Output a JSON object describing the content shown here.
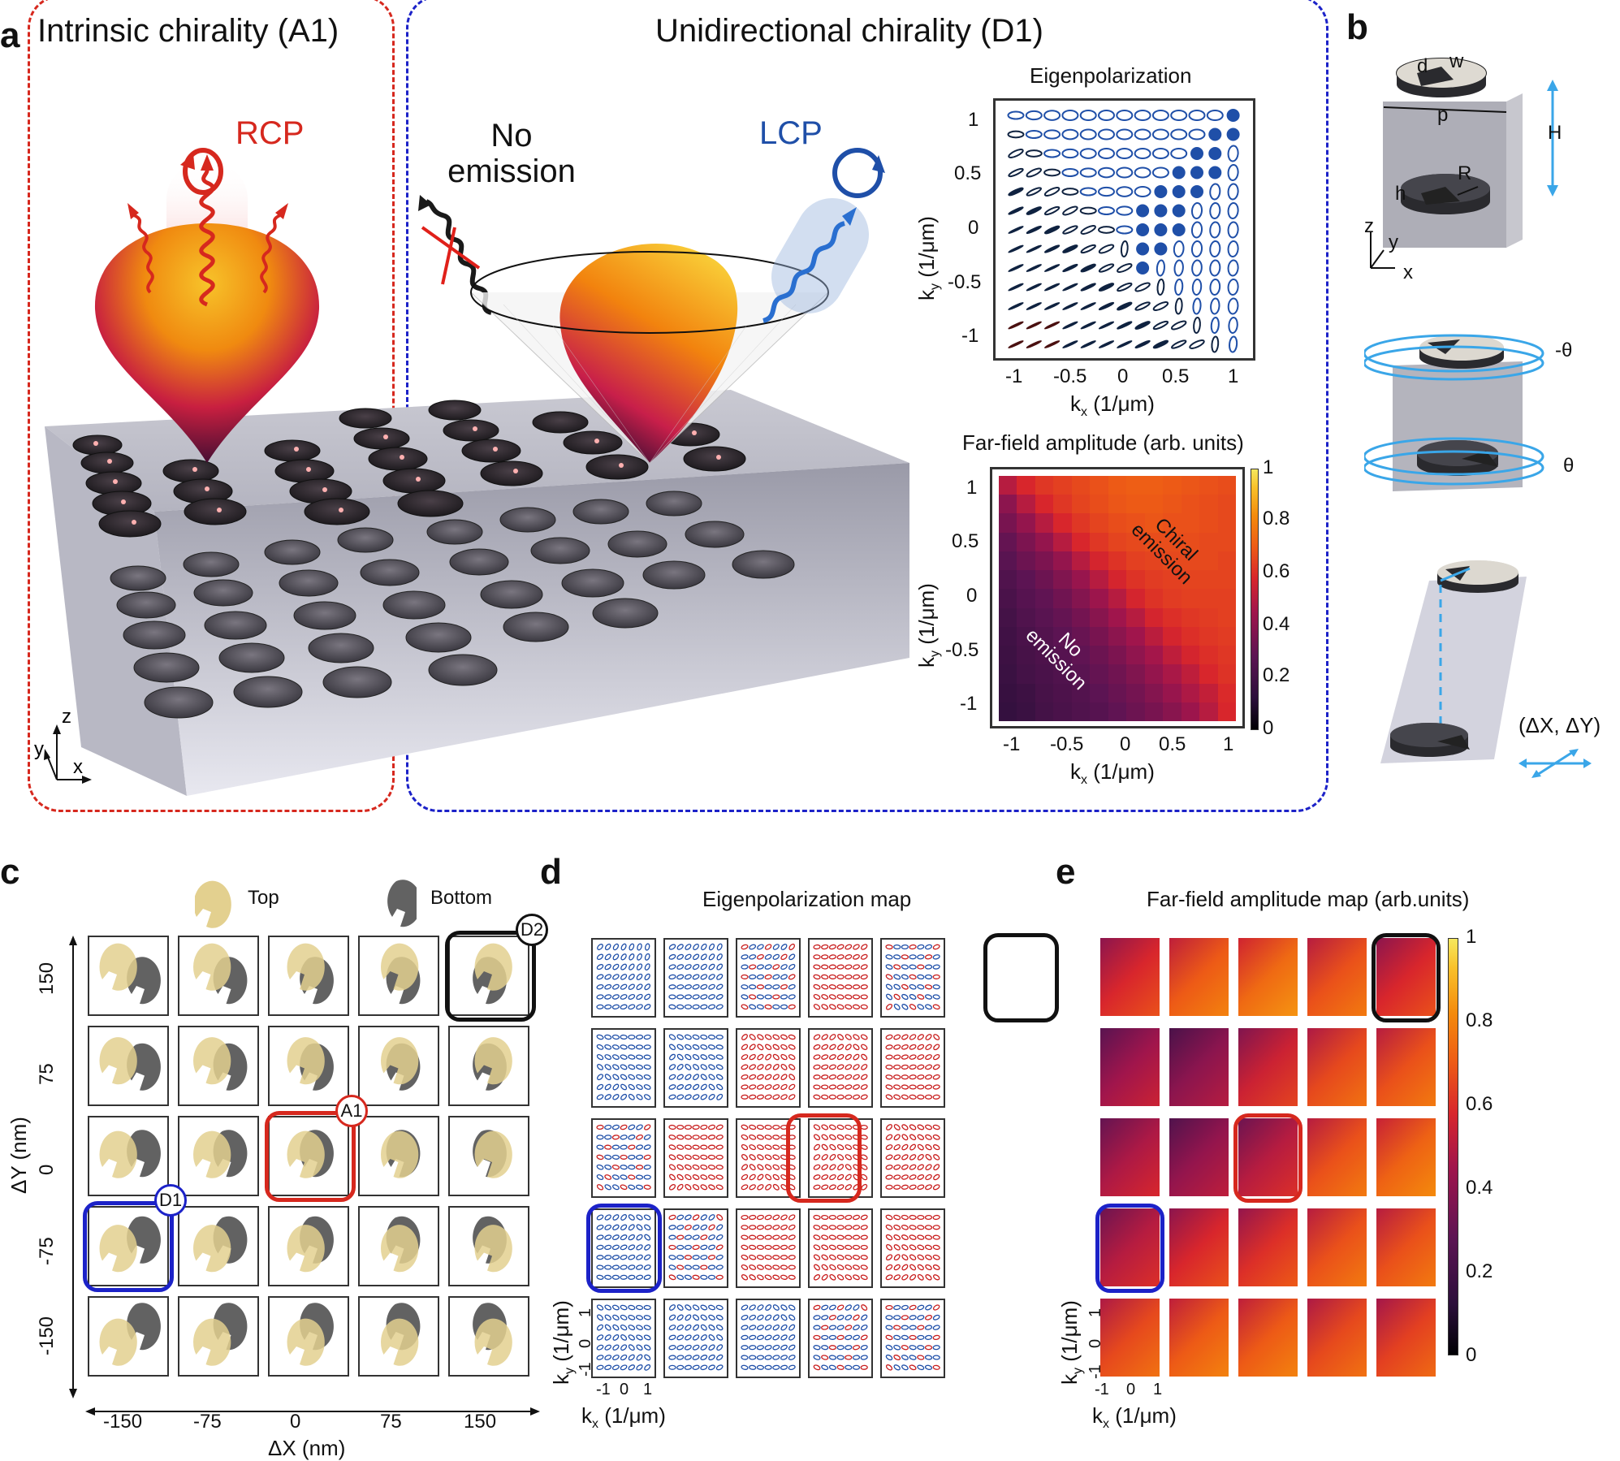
{
  "figure": {
    "panel_labels": [
      "a",
      "b",
      "c",
      "d",
      "e"
    ]
  },
  "panel_a": {
    "left_title": "Intrinsic chirality (A1)",
    "right_title": "Unidirectional chirality (D1)",
    "rcp_label": "RCP",
    "lcp_label": "LCP",
    "no_emission_label_line1": "No",
    "no_emission_label_line2": "emission",
    "axes": {
      "z": "z",
      "y": "y",
      "x": "x"
    },
    "colors": {
      "intrinsic_box": "#d6281e",
      "unidirectional_box": "#1c22c8",
      "rcp": "#d6281e",
      "lcp": "#1f4fa8"
    }
  },
  "chart_data": [
    {
      "id": "eigenpolarization",
      "type": "scatter",
      "title": "Eigenpolarization",
      "xlabel": "kx (1/μm)",
      "ylabel": "ky (1/μm)",
      "xlim": [
        -1.2,
        1.2
      ],
      "ylim": [
        -1.2,
        1.2
      ],
      "xticks": [
        "-1",
        "-0.5",
        "0",
        "0.5",
        "1"
      ],
      "yticks": [
        "1",
        "0.5",
        "0",
        "-0.5",
        "-1"
      ],
      "grid_size": 13,
      "description": "13x13 grid of polarization ellipses; filled blue circles (circular LCP) along anti-diagonal band in upper-right; lines (linear) on left/bottom; open ellipses elsewhere",
      "filled_points_kx_ky": [
        [
          1.05,
          1.05
        ],
        [
          0.88,
          0.88
        ],
        [
          1.05,
          0.88
        ],
        [
          0.7,
          0.7
        ],
        [
          0.88,
          0.7
        ],
        [
          0.53,
          0.53
        ],
        [
          0.7,
          0.53
        ],
        [
          0.88,
          0.53
        ],
        [
          0.35,
          0.35
        ],
        [
          0.53,
          0.35
        ],
        [
          0.7,
          0.35
        ],
        [
          0.18,
          0.18
        ],
        [
          0.35,
          0.18
        ],
        [
          0.53,
          0.18
        ],
        [
          0.18,
          0
        ],
        [
          0.35,
          0
        ],
        [
          0.53,
          0
        ],
        [
          0.18,
          -0.18
        ],
        [
          0.35,
          -0.18
        ],
        [
          0.18,
          -0.35
        ]
      ]
    },
    {
      "id": "far_field_amplitude",
      "type": "heatmap",
      "title": "Far-field amplitude (arb. units)",
      "xlabel": "kx (1/μm)",
      "ylabel": "ky (1/μm)",
      "xticks": [
        "-1",
        "-0.5",
        "0",
        "0.5",
        "1"
      ],
      "yticks": [
        "1",
        "0.5",
        "0",
        "-0.5",
        "-1"
      ],
      "colorbar": {
        "min": 0,
        "max": 1,
        "ticks": [
          "1",
          "0.8",
          "0.6",
          "0.4",
          "0.2",
          "0"
        ]
      },
      "annotations": [
        "Chiral emission",
        "No emission"
      ],
      "grid_size": 13,
      "values_rows_top_to_bottom": [
        [
          0.5,
          0.58,
          0.62,
          0.64,
          0.66,
          0.68,
          0.7,
          0.71,
          0.71,
          0.7,
          0.69,
          0.68,
          0.67
        ],
        [
          0.4,
          0.5,
          0.58,
          0.62,
          0.65,
          0.67,
          0.69,
          0.7,
          0.7,
          0.69,
          0.68,
          0.67,
          0.66
        ],
        [
          0.35,
          0.42,
          0.5,
          0.58,
          0.62,
          0.65,
          0.67,
          0.68,
          0.69,
          0.68,
          0.68,
          0.67,
          0.66
        ],
        [
          0.3,
          0.36,
          0.42,
          0.5,
          0.58,
          0.62,
          0.65,
          0.66,
          0.67,
          0.67,
          0.67,
          0.66,
          0.66
        ],
        [
          0.27,
          0.32,
          0.36,
          0.42,
          0.5,
          0.57,
          0.61,
          0.64,
          0.65,
          0.66,
          0.66,
          0.66,
          0.65
        ],
        [
          0.24,
          0.28,
          0.32,
          0.37,
          0.43,
          0.5,
          0.57,
          0.61,
          0.63,
          0.64,
          0.65,
          0.65,
          0.65
        ],
        [
          0.22,
          0.26,
          0.29,
          0.33,
          0.38,
          0.44,
          0.5,
          0.57,
          0.61,
          0.63,
          0.64,
          0.64,
          0.64
        ],
        [
          0.2,
          0.24,
          0.27,
          0.3,
          0.34,
          0.39,
          0.45,
          0.5,
          0.57,
          0.6,
          0.62,
          0.63,
          0.64
        ],
        [
          0.19,
          0.22,
          0.25,
          0.28,
          0.31,
          0.35,
          0.4,
          0.45,
          0.51,
          0.57,
          0.6,
          0.62,
          0.63
        ],
        [
          0.18,
          0.21,
          0.23,
          0.26,
          0.29,
          0.32,
          0.36,
          0.41,
          0.46,
          0.52,
          0.57,
          0.6,
          0.62
        ],
        [
          0.17,
          0.2,
          0.22,
          0.24,
          0.27,
          0.3,
          0.33,
          0.37,
          0.42,
          0.47,
          0.52,
          0.58,
          0.61
        ],
        [
          0.16,
          0.18,
          0.21,
          0.23,
          0.25,
          0.28,
          0.31,
          0.34,
          0.38,
          0.43,
          0.48,
          0.53,
          0.59
        ],
        [
          0.15,
          0.17,
          0.2,
          0.22,
          0.24,
          0.26,
          0.29,
          0.32,
          0.35,
          0.39,
          0.44,
          0.5,
          0.58
        ]
      ]
    },
    {
      "id": "eigenpolarization_map",
      "type": "scatter",
      "title": "Eigenpolarization map",
      "xlabel": "kx (1/μm)",
      "ylabel": "ky (1/μm)",
      "xticks": [
        "-1",
        "0",
        "1"
      ],
      "yticks": [
        "1",
        "0",
        "-1"
      ],
      "grid": "5x5 subplots indexed by ΔX (cols: -150,-75,0,75,150 nm) and ΔY (rows: 150,75,0,-75,-150 nm)",
      "dominant_color_rows_top_to_bottom": [
        [
          "blue",
          "blue",
          "mixed",
          "red",
          "mixed"
        ],
        [
          "blue",
          "blue",
          "red",
          "red",
          "red"
        ],
        [
          "mixed",
          "red",
          "red",
          "red",
          "red"
        ],
        [
          "blue",
          "mixed",
          "red",
          "red",
          "red"
        ],
        [
          "blue",
          "blue",
          "blue",
          "mixed",
          "mixed"
        ]
      ],
      "highlights": {
        "D2": [
          0,
          4
        ],
        "A1": [
          2,
          2
        ],
        "D1": [
          3,
          0
        ]
      }
    },
    {
      "id": "far_field_amplitude_map",
      "type": "heatmap",
      "title": "Far-field amplitude map (arb.units)",
      "xlabel": "kx (1/μm)",
      "ylabel": "ky (1/μm)",
      "xticks": [
        "-1",
        "0",
        "1"
      ],
      "yticks": [
        "1",
        "0",
        "-1"
      ],
      "colorbar": {
        "min": 0,
        "max": 1,
        "ticks": [
          "1",
          "0.8",
          "0.6",
          "0.4",
          "0.2",
          "0"
        ]
      },
      "grid": "5x5 subplots indexed by ΔX (cols) and ΔY (rows)",
      "mean_amplitude_rows_top_to_bottom": [
        [
          0.58,
          0.7,
          0.74,
          0.68,
          0.58
        ],
        [
          0.45,
          0.4,
          0.55,
          0.66,
          0.68
        ],
        [
          0.48,
          0.42,
          0.5,
          0.68,
          0.72
        ],
        [
          0.5,
          0.58,
          0.6,
          0.68,
          0.68
        ],
        [
          0.66,
          0.7,
          0.7,
          0.66,
          0.64
        ]
      ],
      "highlights": {
        "D2": [
          0,
          4
        ],
        "A1": [
          2,
          2
        ],
        "D1": [
          3,
          0
        ]
      }
    }
  ],
  "eigen_plot": {
    "title": "Eigenpolarization",
    "xlabel_k": "k",
    "xlabel_sub": "x",
    "xlabel_unit": " (1/μm)",
    "ylabel_k": "k",
    "ylabel_sub": "y",
    "ylabel_unit": " (1/μm)",
    "xticks": [
      "-1",
      "-0.5",
      "0",
      "0.5",
      "1"
    ],
    "yticks": [
      "1",
      "0.5",
      "0",
      "-0.5",
      "-1"
    ]
  },
  "farfield_plot": {
    "title": "Far-field amplitude (arb. units)",
    "chiral_line1": "Chiral",
    "chiral_line2": "emission",
    "noemit_line1": "No",
    "noemit_line2": "emission",
    "cbar_ticks": [
      "1",
      "0.8",
      "0.6",
      "0.4",
      "0.2",
      "0"
    ]
  },
  "panel_b": {
    "labels": {
      "d": "d",
      "w": "w",
      "p": "p",
      "H": "H",
      "R": "R",
      "h": "h",
      "z": "z",
      "y": "y",
      "x": "x"
    },
    "theta_neg": "-θ",
    "theta_pos": "θ",
    "shift": "(ΔX, ΔY)",
    "arrow_color": "#3aa6e8"
  },
  "panel_c": {
    "legend_top": "Top",
    "legend_bottom": "Bottom",
    "xlabel": "ΔX (nm)",
    "ylabel": "ΔY (nm)",
    "xticks": [
      "-150",
      "-75",
      "0",
      "75",
      "150"
    ],
    "yticks": [
      "150",
      "75",
      "0",
      "-75",
      "-150"
    ],
    "badges": {
      "D2": "D2",
      "A1": "A1",
      "D1": "D1"
    },
    "colors": {
      "top": "#e3d08f",
      "bottom": "#626262"
    }
  },
  "panel_d": {
    "title": "Eigenpolarization map",
    "xticks": [
      "-1",
      "0",
      "1"
    ],
    "yticks": [
      "1",
      "0",
      "-1"
    ]
  },
  "panel_e": {
    "title": "Far-field amplitude map (arb.units)",
    "xticks": [
      "-1",
      "0",
      "1"
    ],
    "yticks": [
      "1",
      "0",
      "-1"
    ],
    "cbar_ticks": [
      "1",
      "0.8",
      "0.6",
      "0.4",
      "0.2",
      "0"
    ]
  }
}
